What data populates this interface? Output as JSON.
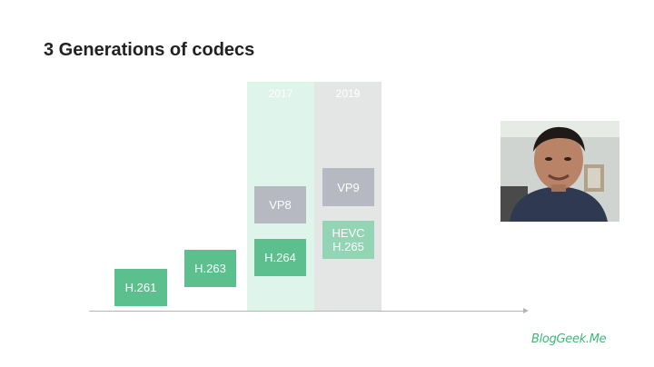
{
  "slide": {
    "title": "3 Generations of codecs"
  },
  "columns": [
    {
      "year": "2017"
    },
    {
      "year": "2019"
    }
  ],
  "codecs": {
    "h261": "H.261",
    "h263": "H.263",
    "h264": "H.264",
    "vp8": "VP8",
    "vp9": "VP9",
    "hevc_line1": "HEVC",
    "hevc_line2": "H.265"
  },
  "colors": {
    "green": "#5cbf8e",
    "light_green": "#93d4b4",
    "gray": "#b6b8c2",
    "column_2017": "#dff4ea",
    "column_2019": "#e4e6e5"
  },
  "logo": {
    "text": "BlogGeek.Me"
  }
}
